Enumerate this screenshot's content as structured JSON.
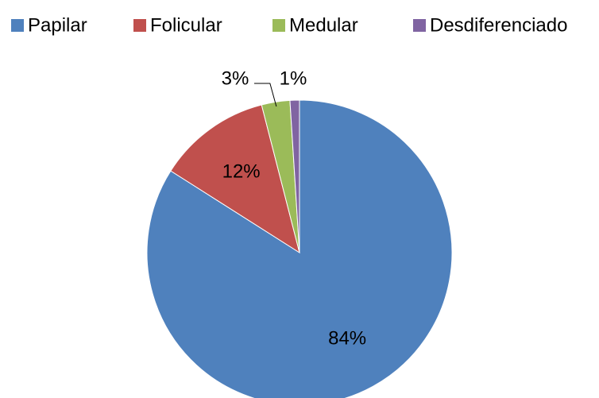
{
  "chart_data": {
    "type": "pie",
    "categories": [
      "Papilar",
      "Folicular",
      "Medular",
      "Desdiferenciado"
    ],
    "values": [
      84,
      12,
      3,
      1
    ],
    "value_labels": [
      "84%",
      "12%",
      "3%",
      "1%"
    ],
    "colors": [
      "#4f81bd",
      "#c0504d",
      "#9bbb59",
      "#8064a2"
    ],
    "legend": "top"
  }
}
